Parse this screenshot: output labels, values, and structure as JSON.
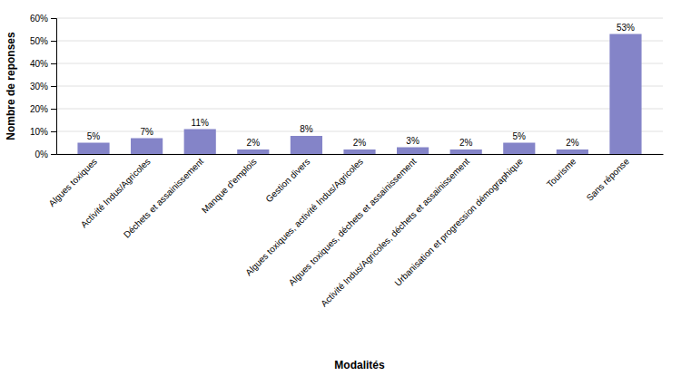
{
  "chart_data": {
    "type": "bar",
    "xlabel": "Modalités",
    "ylabel": "Nombre de reponses",
    "categories": [
      "Algues toxiques",
      "Activité Indus/Agricoles",
      "Déchets et assainissement",
      "Manque d'emplois",
      "Gestion divers",
      "Algues toxiques, activité Indus/Agricoles",
      "Algues toxiques, déchets et assainissement",
      "Activité Indus/Agricoles, déchets et assainissement",
      "Urbanisation et progression démographique",
      "Tourisme",
      "Sans réponse"
    ],
    "values": [
      5,
      7,
      11,
      2,
      8,
      2,
      3,
      2,
      5,
      2,
      53
    ],
    "value_labels": [
      "5%",
      "7%",
      "11%",
      "2%",
      "8%",
      "2%",
      "3%",
      "2%",
      "5%",
      "2%",
      "53%"
    ],
    "color": "#8484c8",
    "ylim": [
      0,
      60
    ],
    "yticks": [
      {
        "value": 0,
        "label": "0%"
      },
      {
        "value": 10,
        "label": "10%"
      },
      {
        "value": 20,
        "label": "20%"
      },
      {
        "value": 30,
        "label": "30%"
      },
      {
        "value": 40,
        "label": "40%"
      },
      {
        "value": 50,
        "label": "50%"
      },
      {
        "value": 60,
        "label": "60%"
      }
    ],
    "grid": true,
    "data_labels": true
  }
}
